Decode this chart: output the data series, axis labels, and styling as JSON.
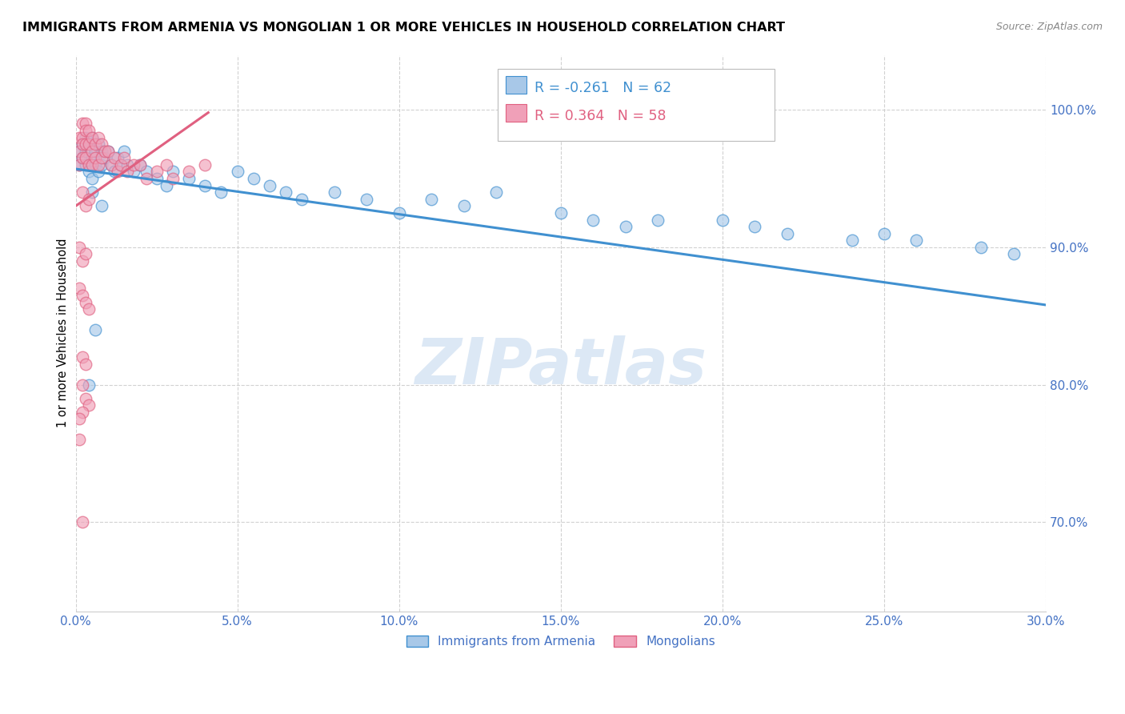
{
  "title": "IMMIGRANTS FROM ARMENIA VS MONGOLIAN 1 OR MORE VEHICLES IN HOUSEHOLD CORRELATION CHART",
  "source": "Source: ZipAtlas.com",
  "ylabel": "1 or more Vehicles in Household",
  "legend_armenia": "Immigrants from Armenia",
  "legend_mongolians": "Mongolians",
  "R_armenia": -0.261,
  "N_armenia": 62,
  "R_mongolians": 0.364,
  "N_mongolians": 58,
  "color_armenia": "#a8c8e8",
  "color_mongolians": "#f0a0b8",
  "color_armenia_line": "#4090d0",
  "color_mongolians_line": "#e06080",
  "color_axis_labels": "#4472c4",
  "watermark_color": "#dce8f5",
  "xmin": 0.0,
  "xmax": 0.3,
  "ymin": 0.635,
  "ymax": 1.04,
  "yticks": [
    0.7,
    0.8,
    0.9,
    1.0
  ],
  "xticks": [
    0.0,
    0.05,
    0.1,
    0.15,
    0.2,
    0.25,
    0.3
  ],
  "armenia_x": [
    0.001,
    0.001,
    0.002,
    0.002,
    0.003,
    0.003,
    0.003,
    0.004,
    0.004,
    0.005,
    0.005,
    0.005,
    0.006,
    0.006,
    0.007,
    0.007,
    0.008,
    0.008,
    0.009,
    0.01,
    0.011,
    0.012,
    0.013,
    0.014,
    0.015,
    0.016,
    0.018,
    0.02,
    0.022,
    0.025,
    0.028,
    0.03,
    0.035,
    0.04,
    0.045,
    0.05,
    0.055,
    0.06,
    0.065,
    0.07,
    0.08,
    0.09,
    0.1,
    0.11,
    0.12,
    0.13,
    0.005,
    0.008,
    0.15,
    0.16,
    0.17,
    0.18,
    0.2,
    0.21,
    0.22,
    0.24,
    0.25,
    0.26,
    0.28,
    0.29,
    0.004,
    0.006
  ],
  "armenia_y": [
    0.97,
    0.96,
    0.975,
    0.965,
    0.98,
    0.97,
    0.96,
    0.975,
    0.955,
    0.98,
    0.965,
    0.95,
    0.97,
    0.96,
    0.975,
    0.955,
    0.97,
    0.96,
    0.965,
    0.97,
    0.96,
    0.955,
    0.965,
    0.96,
    0.97,
    0.96,
    0.955,
    0.96,
    0.955,
    0.95,
    0.945,
    0.955,
    0.95,
    0.945,
    0.94,
    0.955,
    0.95,
    0.945,
    0.94,
    0.935,
    0.94,
    0.935,
    0.925,
    0.935,
    0.93,
    0.94,
    0.94,
    0.93,
    0.925,
    0.92,
    0.915,
    0.92,
    0.92,
    0.915,
    0.91,
    0.905,
    0.91,
    0.905,
    0.9,
    0.895,
    0.8,
    0.84
  ],
  "mongolians_x": [
    0.001,
    0.001,
    0.001,
    0.002,
    0.002,
    0.002,
    0.002,
    0.003,
    0.003,
    0.003,
    0.003,
    0.004,
    0.004,
    0.004,
    0.005,
    0.005,
    0.005,
    0.006,
    0.006,
    0.007,
    0.007,
    0.008,
    0.008,
    0.009,
    0.01,
    0.011,
    0.012,
    0.013,
    0.014,
    0.015,
    0.016,
    0.018,
    0.02,
    0.022,
    0.025,
    0.028,
    0.03,
    0.035,
    0.04,
    0.002,
    0.003,
    0.004,
    0.001,
    0.002,
    0.003,
    0.001,
    0.002,
    0.003,
    0.004,
    0.002,
    0.003,
    0.002,
    0.003,
    0.004,
    0.002,
    0.001,
    0.001,
    0.002
  ],
  "mongolians_y": [
    0.98,
    0.97,
    0.96,
    0.99,
    0.98,
    0.975,
    0.965,
    0.99,
    0.985,
    0.975,
    0.965,
    0.985,
    0.975,
    0.96,
    0.98,
    0.97,
    0.96,
    0.975,
    0.965,
    0.98,
    0.96,
    0.975,
    0.965,
    0.97,
    0.97,
    0.96,
    0.965,
    0.955,
    0.96,
    0.965,
    0.955,
    0.96,
    0.96,
    0.95,
    0.955,
    0.96,
    0.95,
    0.955,
    0.96,
    0.94,
    0.93,
    0.935,
    0.9,
    0.89,
    0.895,
    0.87,
    0.865,
    0.86,
    0.855,
    0.82,
    0.815,
    0.8,
    0.79,
    0.785,
    0.78,
    0.775,
    0.76,
    0.7
  ],
  "arm_line_x0": 0.0,
  "arm_line_x1": 0.3,
  "arm_line_y0": 0.957,
  "arm_line_y1": 0.858,
  "mon_line_x0": 0.0,
  "mon_line_x1": 0.041,
  "mon_line_y0": 0.93,
  "mon_line_y1": 0.998
}
